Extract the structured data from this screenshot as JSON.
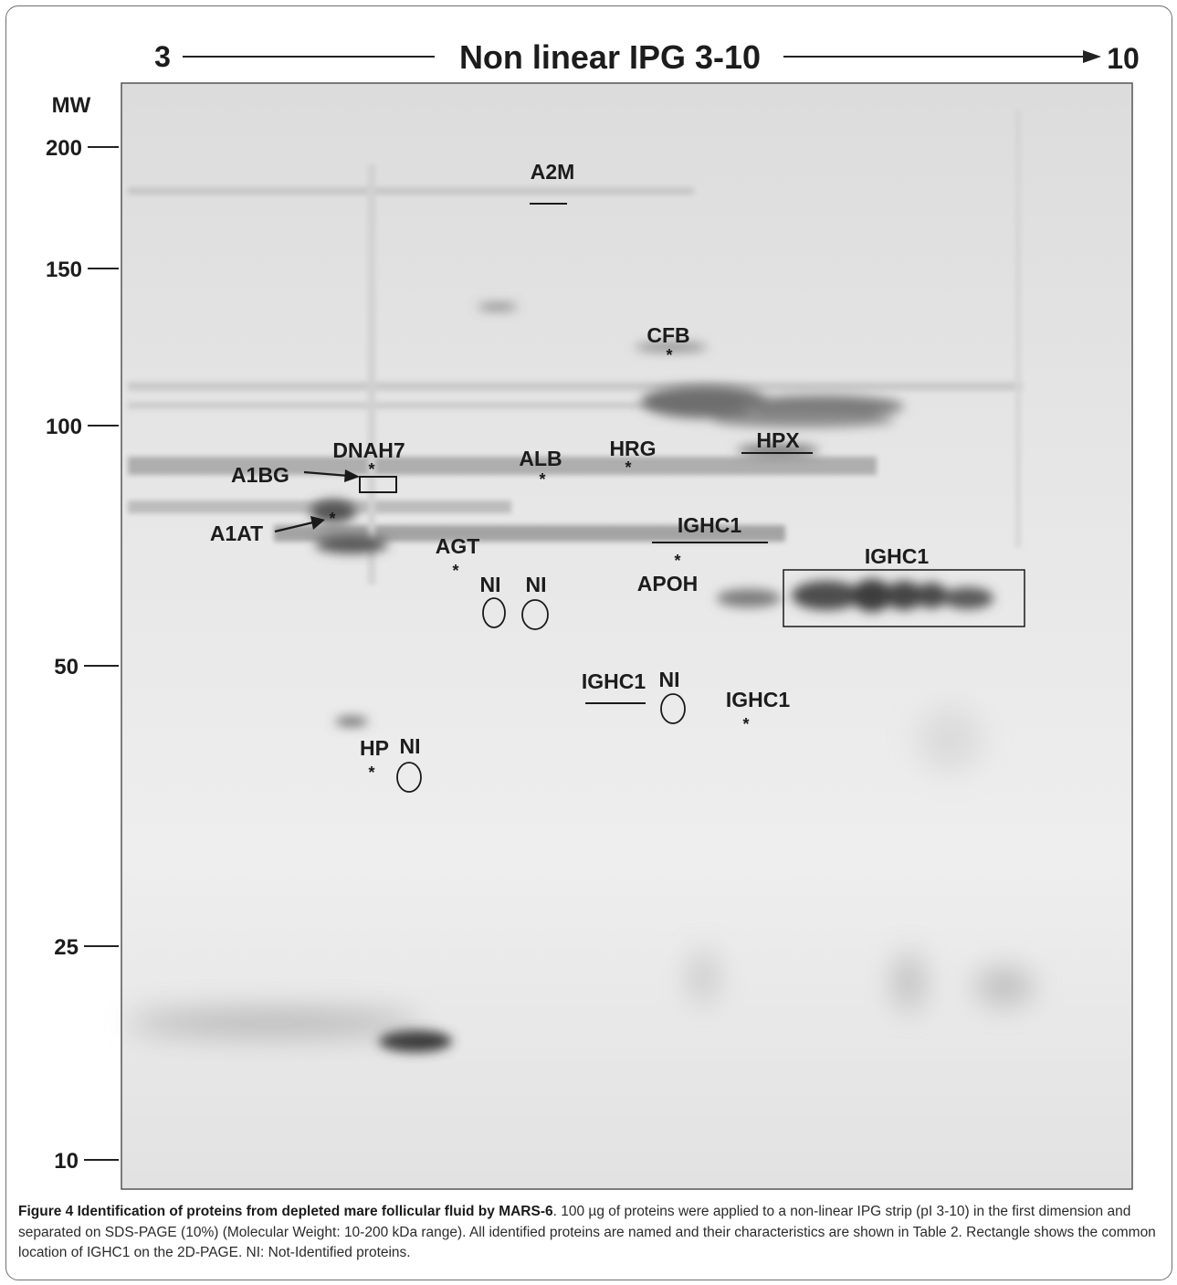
{
  "figure": {
    "ph_left": "3",
    "ph_title": "Non linear IPG 3-10",
    "ph_right": "10",
    "mw_header": "MW",
    "mw_ticks": [
      "200",
      "150",
      "100",
      "50",
      "25",
      "10"
    ],
    "proteins": {
      "a2m": "A2M",
      "cfb": "CFB",
      "dnah7": "DNAH7",
      "a1bg": "A1BG",
      "alb": "ALB",
      "hrg": "HRG",
      "hpx": "HPX",
      "a1at": "A1AT",
      "ighc1_a": "IGHC1",
      "ighc1_b": "IGHC1",
      "agt": "AGT",
      "ni_1": "NI",
      "ni_2": "NI",
      "apoh": "APOH",
      "ighc1_c": "IGHC1",
      "ni_3": "NI",
      "ighc1_d": "IGHC1",
      "hp": "HP",
      "ni_4": "NI"
    }
  },
  "caption": {
    "title": "Figure 4 Identification of proteins from depleted mare follicular fluid by MARS-6",
    "body": ". 100 µg of proteins were applied to a non-linear IPG strip (pI 3-10) in the first dimension and separated on SDS-PAGE (10%) (Molecular Weight: 10-200 kDa range). All identified proteins are named and their characteristics are shown in Table 2. Rectangle shows the common location of IGHC1 on the 2D-PAGE. NI: Not-Identified proteins."
  }
}
